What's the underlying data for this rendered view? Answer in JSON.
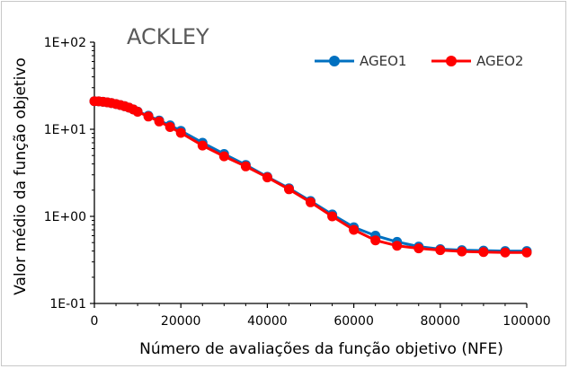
{
  "chart_data": {
    "type": "line",
    "title": "ACKLEY",
    "xlabel": "Número de avaliações da função objetivo (NFE)",
    "ylabel": "Valor médio da função objetivo",
    "x_scale": "linear",
    "y_scale": "log",
    "xlim": [
      0,
      100000
    ],
    "ylim": [
      0.1,
      100
    ],
    "x_ticks": [
      0,
      20000,
      40000,
      60000,
      80000,
      100000
    ],
    "x_tick_labels": [
      "0",
      "20000",
      "40000",
      "60000",
      "80000",
      "100000"
    ],
    "y_ticks": [
      0.1,
      1,
      10,
      100
    ],
    "y_tick_labels": [
      "1E-01",
      "1E+00",
      "1E+01",
      "1E+02"
    ],
    "grid": false,
    "legend_position": "top-right",
    "series": [
      {
        "name": "AGEO1",
        "color": "#0070c0",
        "points": [
          [
            0,
            21.0
          ],
          [
            1000,
            20.9
          ],
          [
            2000,
            20.7
          ],
          [
            3000,
            20.4
          ],
          [
            4000,
            20.0
          ],
          [
            5000,
            19.5
          ],
          [
            6000,
            19.0
          ],
          [
            7000,
            18.4
          ],
          [
            8000,
            17.7
          ],
          [
            9000,
            16.9
          ],
          [
            10000,
            16.0
          ],
          [
            12500,
            14.3
          ],
          [
            15000,
            12.6
          ],
          [
            17500,
            11.1
          ],
          [
            20000,
            9.6
          ],
          [
            25000,
            7.0
          ],
          [
            30000,
            5.2
          ],
          [
            35000,
            3.9
          ],
          [
            40000,
            2.85
          ],
          [
            45000,
            2.1
          ],
          [
            50000,
            1.5
          ],
          [
            55000,
            1.05
          ],
          [
            60000,
            0.75
          ],
          [
            65000,
            0.6
          ],
          [
            70000,
            0.51
          ],
          [
            75000,
            0.45
          ],
          [
            80000,
            0.42
          ],
          [
            85000,
            0.41
          ],
          [
            90000,
            0.405
          ],
          [
            95000,
            0.4
          ],
          [
            100000,
            0.4
          ]
        ]
      },
      {
        "name": "AGEO2",
        "color": "#ff0000",
        "points": [
          [
            0,
            21.0
          ],
          [
            1000,
            20.9
          ],
          [
            2000,
            20.7
          ],
          [
            3000,
            20.4
          ],
          [
            4000,
            20.0
          ],
          [
            5000,
            19.5
          ],
          [
            6000,
            19.0
          ],
          [
            7000,
            18.4
          ],
          [
            8000,
            17.7
          ],
          [
            9000,
            16.9
          ],
          [
            10000,
            15.9
          ],
          [
            12500,
            14.0
          ],
          [
            15000,
            12.3
          ],
          [
            17500,
            10.6
          ],
          [
            20000,
            9.1
          ],
          [
            25000,
            6.5
          ],
          [
            30000,
            4.9
          ],
          [
            35000,
            3.75
          ],
          [
            40000,
            2.8
          ],
          [
            45000,
            2.05
          ],
          [
            50000,
            1.45
          ],
          [
            55000,
            1.0
          ],
          [
            60000,
            0.7
          ],
          [
            65000,
            0.53
          ],
          [
            70000,
            0.46
          ],
          [
            75000,
            0.43
          ],
          [
            80000,
            0.41
          ],
          [
            85000,
            0.395
          ],
          [
            90000,
            0.39
          ],
          [
            95000,
            0.385
          ],
          [
            100000,
            0.385
          ]
        ]
      }
    ]
  }
}
